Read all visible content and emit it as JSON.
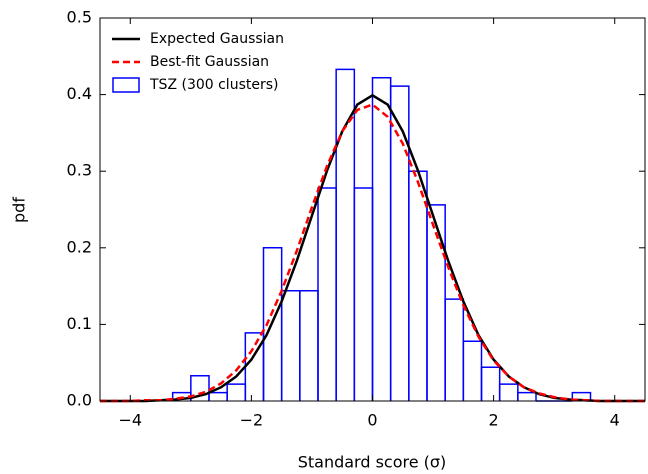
{
  "chart_data": {
    "type": "histogram",
    "xlabel": "Standard score (σ)",
    "ylabel": "pdf",
    "xlim": [
      -4.5,
      4.5
    ],
    "ylim": [
      0,
      0.5
    ],
    "xticks": [
      {
        "value": -4,
        "label": "−4"
      },
      {
        "value": -2,
        "label": "−2"
      },
      0,
      2,
      4
    ],
    "yticks": [
      {
        "value": 0,
        "label": "0.0"
      },
      0.1,
      0.2,
      0.3,
      0.4,
      0.5
    ],
    "legend": "upper left",
    "x": [
      -4.5,
      -4.25,
      -4,
      -3.75,
      -3.5,
      -3.25,
      -3,
      -2.75,
      -2.5,
      -2.25,
      -2,
      -1.75,
      -1.5,
      -1.25,
      -1,
      -0.75,
      -0.5,
      -0.25,
      0,
      0.25,
      0.5,
      0.75,
      1,
      1.25,
      1.5,
      1.75,
      2,
      2.25,
      2.5,
      2.75,
      3,
      3.25,
      3.5,
      3.75,
      4,
      4.25,
      4.5
    ],
    "series": [
      {
        "name": "Expected Gaussian",
        "color": "#000000",
        "dashed": false,
        "values": [
          0,
          0,
          0,
          0,
          0.001,
          0.002,
          0.004,
          0.009,
          0.018,
          0.032,
          0.054,
          0.086,
          0.13,
          0.183,
          0.242,
          0.301,
          0.352,
          0.387,
          0.399,
          0.387,
          0.352,
          0.301,
          0.242,
          0.183,
          0.13,
          0.086,
          0.054,
          0.032,
          0.018,
          0.009,
          0.004,
          0.002,
          0.001,
          0,
          0,
          0,
          0
        ]
      },
      {
        "name": "Best-fit Gaussian",
        "color": "#ff0000",
        "dashed": true,
        "values": [
          0,
          0,
          0,
          0.001,
          0.001,
          0.003,
          0.006,
          0.012,
          0.023,
          0.04,
          0.065,
          0.099,
          0.144,
          0.196,
          0.253,
          0.307,
          0.352,
          0.38,
          0.387,
          0.371,
          0.336,
          0.286,
          0.23,
          0.175,
          0.125,
          0.084,
          0.053,
          0.032,
          0.018,
          0.01,
          0.005,
          0.002,
          0.001,
          0,
          0,
          0,
          0
        ]
      }
    ],
    "histogram": {
      "name": "TSZ (300 clusters)",
      "color": "#0000ff",
      "bins": [
        -3.3,
        -3.0,
        -2.7,
        -2.4,
        -2.1,
        -1.8,
        -1.5,
        -1.2,
        -0.9,
        -0.6,
        -0.3,
        0,
        0.3,
        0.6,
        0.9,
        1.2,
        1.5,
        1.8,
        2.1,
        2.4,
        2.7,
        3.0,
        3.3,
        3.6
      ],
      "values": [
        0.011,
        0.033,
        0.011,
        0.022,
        0.089,
        0.2,
        0.144,
        0.144,
        0.278,
        0.433,
        0.278,
        0.422,
        0.411,
        0.3,
        0.256,
        0.133,
        0.078,
        0.044,
        0.022,
        0.011,
        0,
        0,
        0.011
      ]
    }
  }
}
